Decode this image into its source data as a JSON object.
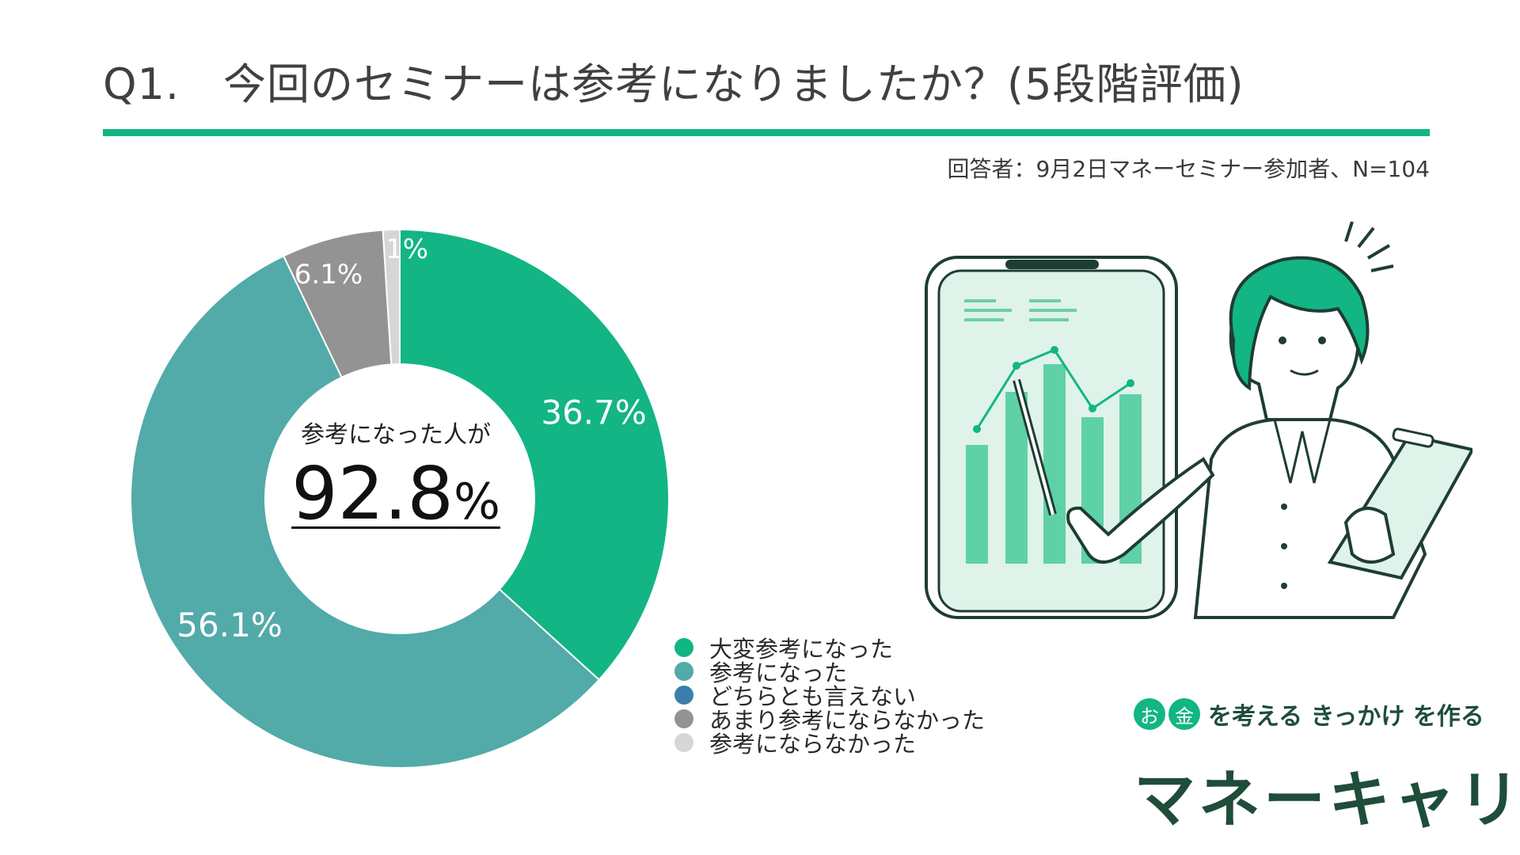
{
  "title": "Q1.　今回のセミナーは参考になりましたか？(5段階評価)",
  "respondents": "回答者：9月2日マネーセミナー参加者、N=104",
  "center": {
    "label": "参考になった人が",
    "value": "92.8",
    "unit": "%"
  },
  "chart_data": {
    "type": "pie",
    "title": "Q1.　今回のセミナーは参考になりましたか？(5段階評価)",
    "categories": [
      "大変参考になった",
      "参考になった",
      "どちらとも言えない",
      "あまり参考にならなかった",
      "参考にならなかった"
    ],
    "values": [
      36.7,
      56.1,
      0,
      6.1,
      1
    ],
    "labels": [
      "36.7%",
      "56.1%",
      "",
      "6.1%",
      "1%"
    ],
    "colors": [
      "#12b583",
      "#52aaa9",
      "#3a7fab",
      "#939393",
      "#d6d6d6"
    ],
    "donut": true,
    "legend": "bottom-right"
  },
  "brand": {
    "tag_o": "お",
    "tag_kin": "金",
    "tagline": "を考える きっかけ を作る",
    "name": "マネーキャリア"
  }
}
